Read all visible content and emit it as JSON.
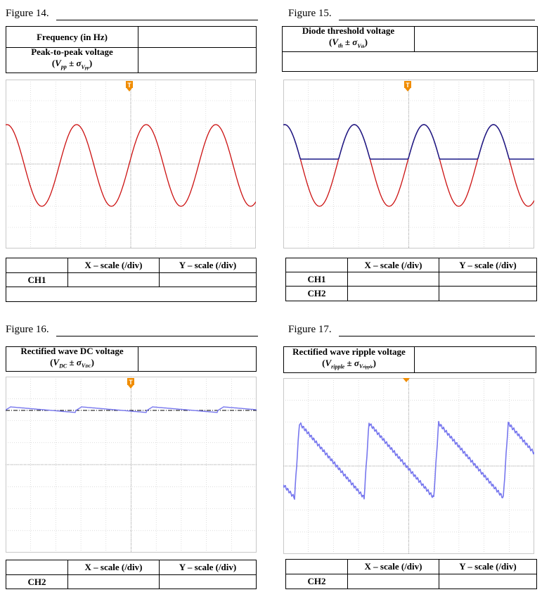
{
  "figures": {
    "fig14": {
      "title": "Figure 14.",
      "rows": [
        {
          "label": "Frequency (in Hz)"
        },
        {
          "label": "Peak-to-peak voltage",
          "sub": "(Vₚₚ ± σVₚₚ)"
        }
      ],
      "scale_table": {
        "headers": [
          "X – scale (/div)",
          "Y – scale (/div)"
        ],
        "channels": [
          "CH1"
        ]
      },
      "trace_colors": [
        "#cc1111"
      ]
    },
    "fig15": {
      "title": "Figure 15.",
      "rows": [
        {
          "label": "Diode threshold voltage",
          "sub": "(Vth ± σVth)"
        }
      ],
      "scale_table": {
        "headers": [
          "X – scale (/div)",
          "Y – scale (/div)"
        ],
        "channels": [
          "CH1",
          "CH2"
        ]
      },
      "trace_colors": [
        "#cc1111",
        "#1a1a88"
      ]
    },
    "fig16": {
      "title": "Figure 16.",
      "rows": [
        {
          "label": "Rectified wave DC voltage",
          "sub": "(VDC ± σVDC)"
        }
      ],
      "scale_table": {
        "headers": [
          "X – scale (/div)",
          "Y – scale (/div)"
        ],
        "channels": [
          "CH2"
        ]
      },
      "trace_colors": [
        "#7777ee"
      ]
    },
    "fig17": {
      "title": "Figure 17.",
      "rows": [
        {
          "label": "Rectified wave ripple voltage",
          "sub": "(Vripple ± σVripple)"
        }
      ],
      "scale_table": {
        "headers": [
          "X – scale (/div)",
          "Y – scale (/div)"
        ],
        "channels": [
          "CH2"
        ]
      },
      "trace_colors": [
        "#7777ee"
      ]
    }
  },
  "scope": {
    "trigger_marker_color": "#f08c00",
    "trigger_marker_label": "T",
    "grid_color": "#c8c8c8"
  }
}
